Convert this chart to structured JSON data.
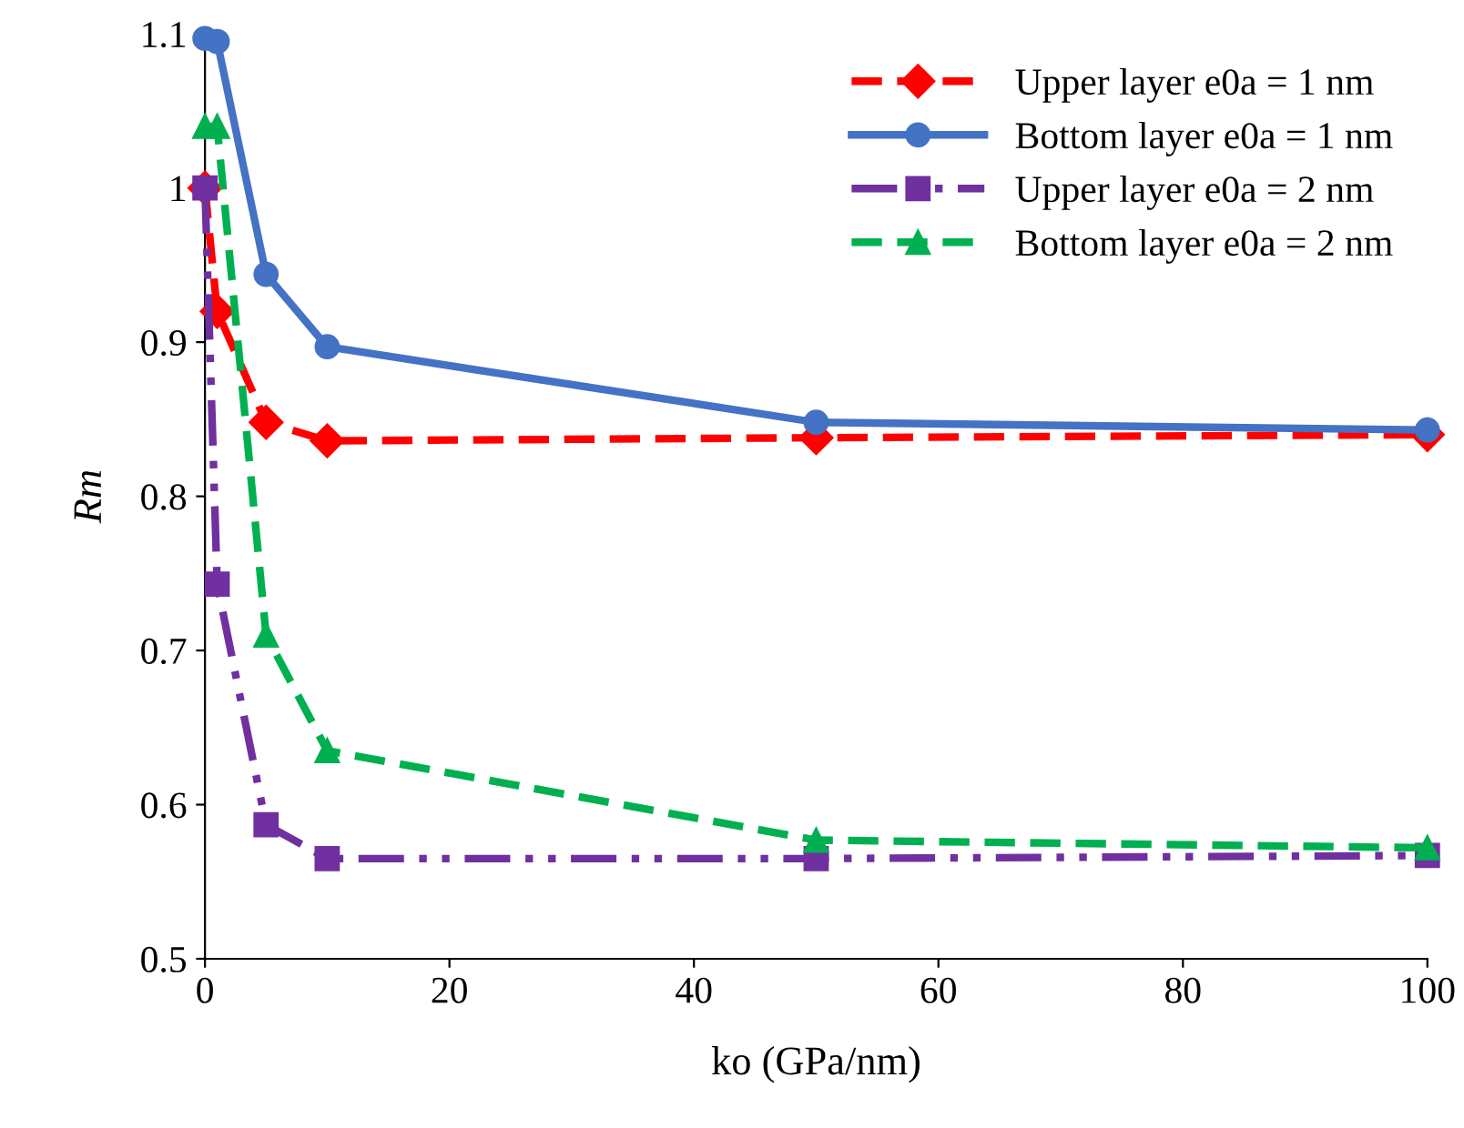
{
  "chart_data": {
    "type": "line",
    "xlabel": "ko (GPa/nm)",
    "ylabel": "Rm",
    "x": [
      0,
      1,
      5,
      10,
      50,
      100
    ],
    "series": [
      {
        "name": "Upper layer e0a = 1 nm",
        "color": "#ff0000",
        "marker": "diamond",
        "line_style": "dashed",
        "values": [
          1.0,
          0.92,
          0.848,
          0.836,
          0.838,
          0.84
        ]
      },
      {
        "name": "Bottom layer e0a = 1 nm",
        "color": "#4472c4",
        "marker": "circle",
        "line_style": "solid",
        "values": [
          1.097,
          1.095,
          0.944,
          0.897,
          0.848,
          0.843
        ]
      },
      {
        "name": "Upper layer e0a = 2 nm",
        "color": "#7030a0",
        "marker": "square",
        "line_style": "dotted",
        "values": [
          1.0,
          0.743,
          0.587,
          0.565,
          0.565,
          0.567
        ]
      },
      {
        "name": "Bottom layer e0a = 2 nm",
        "color": "#00b050",
        "marker": "triangle",
        "line_style": "dashed",
        "values": [
          1.04,
          1.04,
          0.71,
          0.635,
          0.577,
          0.572
        ]
      }
    ],
    "xlim": [
      0,
      100
    ],
    "xticks": [
      0,
      20,
      40,
      60,
      80,
      100
    ],
    "ylim": [
      0.5,
      1.1
    ],
    "yticks": [
      0.5,
      0.6,
      0.7,
      0.8,
      0.9,
      1,
      1.1
    ],
    "grid": false,
    "legend": "top right"
  }
}
